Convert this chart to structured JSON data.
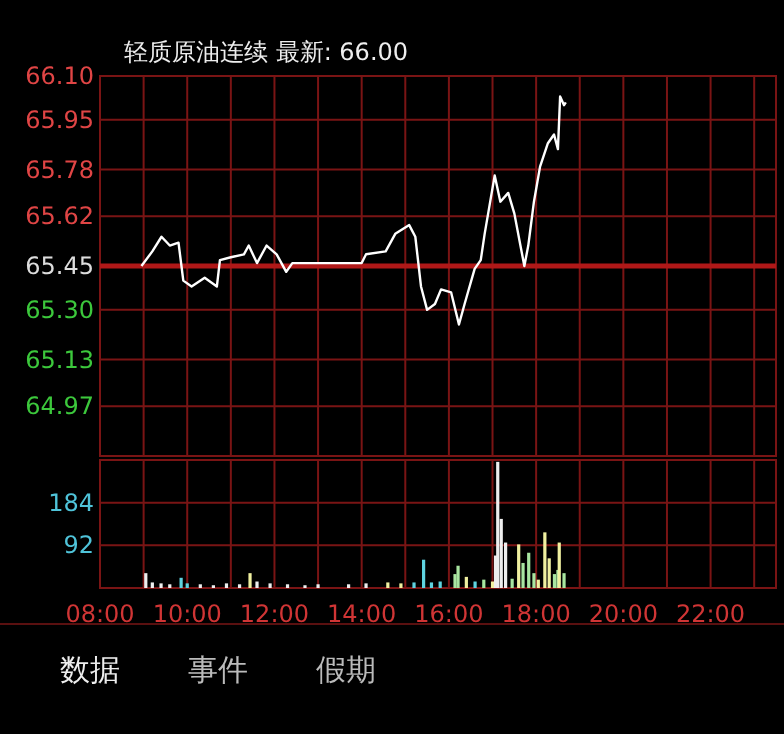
{
  "chart_data": [
    {
      "type": "line",
      "title": "轻质原油连续 最新: 66.00",
      "xlim": [
        8,
        23.5
      ],
      "ylim": [
        64.8,
        66.1
      ],
      "xticks": [
        {
          "value": 8,
          "label": null
        },
        {
          "value": 9,
          "label": null
        },
        {
          "value": 10,
          "label": null
        },
        {
          "value": 11,
          "label": null
        },
        {
          "value": 12,
          "label": null
        },
        {
          "value": 13,
          "label": null
        },
        {
          "value": 14,
          "label": null
        },
        {
          "value": 15,
          "label": null
        },
        {
          "value": 16,
          "label": null
        },
        {
          "value": 17,
          "label": null
        },
        {
          "value": 18,
          "label": null
        },
        {
          "value": 19,
          "label": null
        },
        {
          "value": 20,
          "label": null
        },
        {
          "value": 21,
          "label": null
        },
        {
          "value": 22,
          "label": null
        },
        {
          "value": 23,
          "label": null
        }
      ],
      "yticks": [
        {
          "value": 66.1,
          "label": "66.10"
        },
        {
          "value": 65.95,
          "label": "65.95"
        },
        {
          "value": 65.78,
          "label": "65.78"
        },
        {
          "value": 65.62,
          "label": "65.62"
        },
        {
          "value": 65.45,
          "label": "65.45"
        },
        {
          "value": 65.3,
          "label": "65.30"
        },
        {
          "value": 65.13,
          "label": "65.13"
        },
        {
          "value": 64.97,
          "label": "64.97"
        }
      ],
      "tick_labels": "y",
      "grid": true,
      "ref_lines": [
        {
          "axis": "y",
          "value": 65.45,
          "color": "#b01818"
        }
      ],
      "series": [
        {
          "color": "#ffffff",
          "x": [
            8.95,
            9.2,
            9.41,
            9.6,
            9.8,
            9.91,
            10.1,
            10.4,
            10.68,
            10.75,
            11.0,
            11.3,
            11.41,
            11.6,
            11.82,
            12.05,
            12.27,
            12.41,
            13.41,
            14.0,
            14.1,
            14.55,
            14.77,
            15.09,
            15.23,
            15.36,
            15.5,
            15.68,
            15.82,
            16.05,
            16.23,
            16.36,
            16.59,
            16.73,
            16.82,
            17.05,
            17.18,
            17.36,
            17.5,
            17.64,
            17.73,
            17.82,
            17.95,
            18.09,
            18.27,
            18.41,
            18.5,
            18.55,
            18.64,
            18.68
          ],
          "values": [
            65.45,
            65.5,
            65.55,
            65.52,
            65.53,
            65.4,
            65.38,
            65.41,
            65.38,
            65.47,
            65.48,
            65.49,
            65.52,
            65.46,
            65.52,
            65.49,
            65.43,
            65.46,
            65.46,
            65.46,
            65.49,
            65.5,
            65.56,
            65.59,
            65.55,
            65.38,
            65.3,
            65.32,
            65.37,
            65.36,
            65.25,
            65.32,
            65.44,
            65.47,
            65.56,
            65.76,
            65.67,
            65.7,
            65.63,
            65.52,
            65.45,
            65.52,
            65.67,
            65.79,
            65.87,
            65.9,
            65.85,
            66.03,
            66.0,
            66.01
          ]
        }
      ]
    },
    {
      "type": "bar",
      "xlim": [
        8,
        23.5
      ],
      "ylim": [
        0,
        276
      ],
      "xticks": [
        {
          "value": 8,
          "label": "08:00"
        },
        {
          "value": 9,
          "label": null
        },
        {
          "value": 10,
          "label": "10:00"
        },
        {
          "value": 11,
          "label": null
        },
        {
          "value": 12,
          "label": "12:00"
        },
        {
          "value": 13,
          "label": null
        },
        {
          "value": 14,
          "label": "14:00"
        },
        {
          "value": 15,
          "label": null
        },
        {
          "value": 16,
          "label": "16:00"
        },
        {
          "value": 17,
          "label": null
        },
        {
          "value": 18,
          "label": "18:00"
        },
        {
          "value": 19,
          "label": null
        },
        {
          "value": 20,
          "label": "20:00"
        },
        {
          "value": 21,
          "label": null
        },
        {
          "value": 22,
          "label": "22:00"
        },
        {
          "value": 23,
          "label": null
        }
      ],
      "yticks": [
        92,
        184,
        {
          "value": 276,
          "label": null
        }
      ],
      "grid": true,
      "x": [
        9.05,
        9.2,
        9.4,
        9.6,
        9.86,
        10.0,
        10.3,
        10.6,
        10.9,
        11.2,
        11.44,
        11.6,
        11.9,
        12.3,
        12.7,
        13.0,
        13.7,
        14.1,
        14.6,
        14.9,
        15.2,
        15.42,
        15.6,
        15.8,
        16.14,
        16.21,
        16.4,
        16.6,
        16.8,
        17.0,
        17.07,
        17.12,
        17.2,
        17.3,
        17.45,
        17.6,
        17.7,
        17.83,
        17.95,
        18.05,
        18.2,
        18.3,
        18.42,
        18.5,
        18.53,
        18.64
      ],
      "values": [
        32,
        12,
        10,
        8,
        22,
        10,
        8,
        6,
        10,
        8,
        32,
        14,
        10,
        8,
        6,
        8,
        8,
        10,
        12,
        10,
        12,
        61,
        12,
        14,
        30,
        48,
        24,
        14,
        18,
        14,
        70,
        272,
        149,
        98,
        20,
        94,
        54,
        76,
        32,
        18,
        120,
        64,
        30,
        39,
        98,
        32
      ],
      "colors": [
        "#eeeeee",
        "#eeeeee",
        "#eeeeee",
        "#eeeeee",
        "#5fd3e0",
        "#5fd3e0",
        "#eeeeee",
        "#eeeeee",
        "#eeeeee",
        "#eeeeee",
        "#f0f0a0",
        "#eeeeee",
        "#eeeeee",
        "#eeeeee",
        "#eeeeee",
        "#eeeeee",
        "#eeeeee",
        "#eeeeee",
        "#f0f0a0",
        "#f0f0a0",
        "#5fd3e0",
        "#5fd3e0",
        "#5fd3e0",
        "#5fd3e0",
        "#a8e6a0",
        "#a8e6a0",
        "#f0f0a0",
        "#5fd3e0",
        "#a8e6a0",
        "#f0f0a0",
        "#eeeeee",
        "#eeeeee",
        "#eeeeee",
        "#eeeeee",
        "#a8e6a0",
        "#f0f0a0",
        "#a8e6a0",
        "#a8e6a0",
        "#a8e6a0",
        "#f0f0a0",
        "#f0f0a0",
        "#f0f0a0",
        "#a8e6a0",
        "#a8e6a0",
        "#f0f0a0",
        "#a8e6a0"
      ],
      "annotations": [
        "数据",
        "事件",
        "假期"
      ]
    }
  ]
}
